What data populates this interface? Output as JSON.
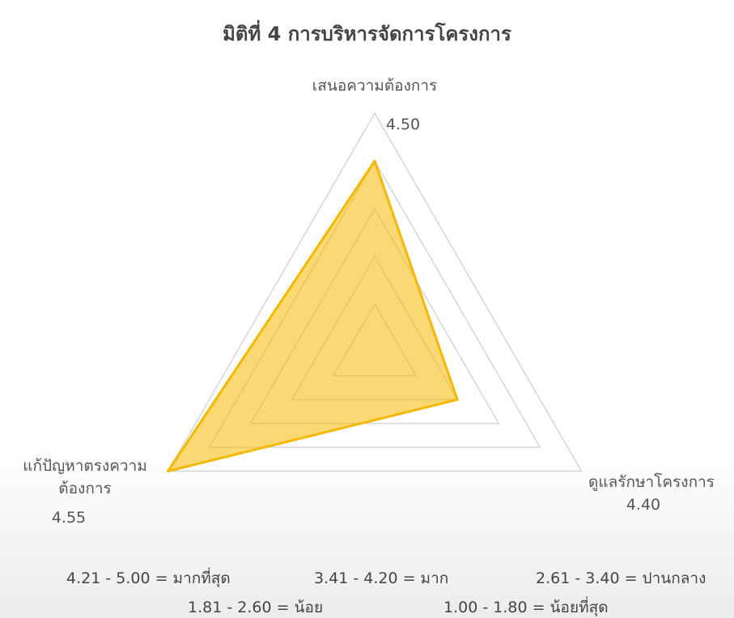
{
  "chart_data": {
    "type": "radar",
    "title": "มิติที่ 4 การบริหารจัดการโครงการ",
    "categories": [
      "เสนอความต้องการ",
      "ดูแลรักษาโครงการ",
      "แก้ปัญหาตรงความต้องการ"
    ],
    "values": [
      4.5,
      4.4,
      4.55
    ],
    "value_labels": [
      "4.50",
      "4.40",
      "4.55"
    ],
    "color": "#f5b800",
    "rlim": [
      4.3,
      4.55
    ],
    "rticks": [
      4.3,
      4.35,
      4.4,
      4.45,
      4.5,
      4.55
    ],
    "grid": true,
    "notes": [
      "4.21 - 5.00 = มากที่สุด",
      "3.41 - 4.20 = มาก",
      "2.61 - 3.40 = ปานกลาง",
      "1.81 - 2.60 = น้อย",
      "1.00 - 1.80 = น้อยที่สุด"
    ]
  }
}
